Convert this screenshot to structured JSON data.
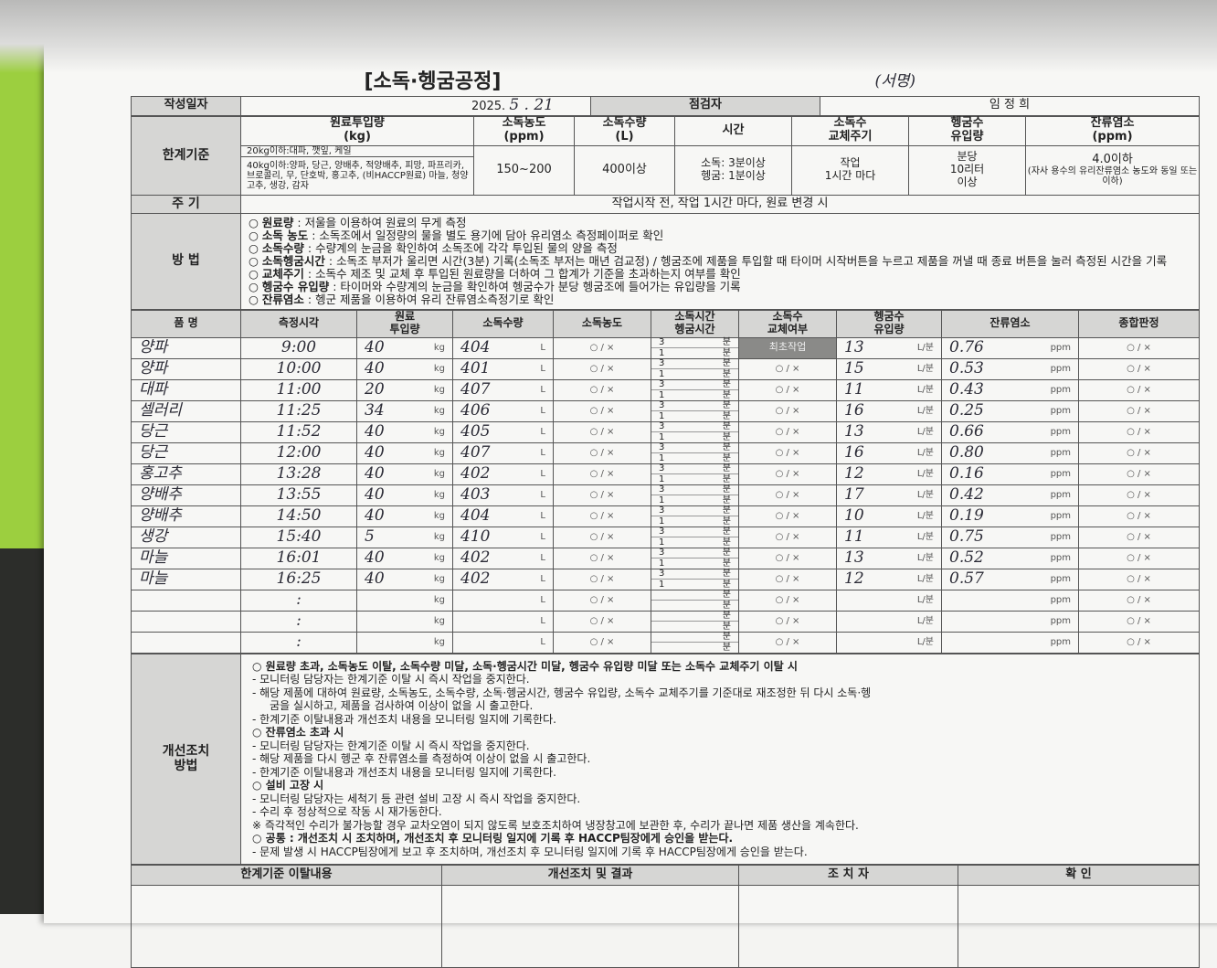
{
  "title": "[소독·헹굼공정]",
  "date_label": "작성일자",
  "date_printed": "2025.",
  "date_handwritten": "5 . 21",
  "inspector_label": "점검자",
  "inspector_name": "임 정 희",
  "limits": {
    "label": "한계기준",
    "headers": [
      "원료투입량\n(kg)",
      "소독농도\n(ppm)",
      "소독수량\n(L)",
      "시간",
      "소독수\n교체주기",
      "헹굼수\n유입량",
      "잔류염소\n(ppm)"
    ],
    "raw_line1": "20kg이하:대파, 깻잎, 케일",
    "raw_line2": "40kg이하:양파, 당근, 양배추, 적양배추, 피망, 파프리카, 브로콜리, 무, 단호박, 홍고추, (비HACCP원료) 마늘, 청양고추, 생강, 감자",
    "conc": "150~200",
    "volume": "400이상",
    "time": "소독: 3분이상\n헹굼: 1분이상",
    "cycle": "작업\n1시간 마다",
    "inflow": "분당\n10리터\n이상",
    "chlorine": "4.0이하",
    "chlorine_note": "(자사 용수의 유리잔류염소 농도와 동일 또는 이하)"
  },
  "period": {
    "label": "주 기",
    "value": "작업시작 전, 작업 1시간 마다, 원료 변경 시"
  },
  "methods": {
    "label": "방 법",
    "items": [
      {
        "k": "원료량",
        "v": " : 저울을 이용하여 원료의 무게 측정"
      },
      {
        "k": "소독 농도",
        "v": " : 소독조에서 일정량의 물을 별도 용기에 담아 유리염소 측정페이퍼로 확인"
      },
      {
        "k": "소독수량",
        "v": " : 수량계의 눈금을 확인하여 소독조에 각각 투입된 물의 양을 측정"
      },
      {
        "k": "소독헹굼시간",
        "v": " : 소독조 부저가 울리면 시간(3분) 기록(소독조 부저는 매년 검교정) / 헹굼조에 제품을 투입할 때 타이머 시작버튼을 누르고 제품을 꺼낼 때 종료 버튼을 눌러 측정된 시간을 기록"
      },
      {
        "k": "교체주기",
        "v": " : 소독수 제조 및 교체 후 투입된 원료량을 더하여 그 합계가 기준을 초과하는지 여부를 확인"
      },
      {
        "k": "헹굼수 유입량",
        "v": " : 타이머와 수량계의 눈금을 확인하여 헹굼수가 분당 헹굼조에 들어가는 유입량을 기록"
      },
      {
        "k": "잔류염소",
        "v": " : 헹군 제품을 이용하여 유리 잔류염소측정기로 확인"
      }
    ]
  },
  "log": {
    "headers": [
      "품 명",
      "측정시각",
      "원료\n투입량",
      "소독수량",
      "소독농도",
      "소독시간\n헹굼시간",
      "소독수\n교체여부",
      "헹굼수\n유입량",
      "잔류염소",
      "종합판정"
    ],
    "units": {
      "kg": "kg",
      "L": "L",
      "min": "분",
      "lpm": "L/분",
      "ppm": "ppm",
      "ox": "○ / ×"
    },
    "rows": [
      {
        "item": "양파",
        "time": "9:00",
        "raw": "40",
        "vol": "404",
        "cycle": "최초작업",
        "dis": "3",
        "rinse": "1",
        "inflow": "13",
        "cl": "0.76"
      },
      {
        "item": "양파",
        "time": "10:00",
        "raw": "40",
        "vol": "401",
        "cycle": "",
        "dis": "3",
        "rinse": "1",
        "inflow": "15",
        "cl": "0.53"
      },
      {
        "item": "대파",
        "time": "11:00",
        "raw": "20",
        "vol": "407",
        "cycle": "",
        "dis": "3",
        "rinse": "1",
        "inflow": "11",
        "cl": "0.43"
      },
      {
        "item": "셀러리",
        "time": "11:25",
        "raw": "34",
        "vol": "406",
        "cycle": "",
        "dis": "3",
        "rinse": "1",
        "inflow": "16",
        "cl": "0.25"
      },
      {
        "item": "당근",
        "time": "11:52",
        "raw": "40",
        "vol": "405",
        "cycle": "",
        "dis": "3",
        "rinse": "1",
        "inflow": "13",
        "cl": "0.66"
      },
      {
        "item": "당근",
        "time": "12:00",
        "raw": "40",
        "vol": "407",
        "cycle": "",
        "dis": "3",
        "rinse": "1",
        "inflow": "16",
        "cl": "0.80"
      },
      {
        "item": "홍고추",
        "time": "13:28",
        "raw": "40",
        "vol": "402",
        "cycle": "",
        "dis": "3",
        "rinse": "1",
        "inflow": "12",
        "cl": "0.16"
      },
      {
        "item": "양배추",
        "time": "13:55",
        "raw": "40",
        "vol": "403",
        "cycle": "",
        "dis": "3",
        "rinse": "1",
        "inflow": "17",
        "cl": "0.42"
      },
      {
        "item": "양배추",
        "time": "14:50",
        "raw": "40",
        "vol": "404",
        "cycle": "",
        "dis": "3",
        "rinse": "1",
        "inflow": "10",
        "cl": "0.19"
      },
      {
        "item": "생강",
        "time": "15:40",
        "raw": "5",
        "vol": "410",
        "cycle": "",
        "dis": "3",
        "rinse": "1",
        "inflow": "11",
        "cl": "0.75"
      },
      {
        "item": "마늘",
        "time": "16:01",
        "raw": "40",
        "vol": "402",
        "cycle": "",
        "dis": "3",
        "rinse": "1",
        "inflow": "13",
        "cl": "0.52"
      },
      {
        "item": "마늘",
        "time": "16:25",
        "raw": "40",
        "vol": "402",
        "cycle": "",
        "dis": "3",
        "rinse": "1",
        "inflow": "12",
        "cl": "0.57"
      },
      {
        "item": "",
        "time": ":",
        "raw": "",
        "vol": "",
        "cycle": "",
        "dis": "",
        "rinse": "",
        "inflow": "",
        "cl": ""
      },
      {
        "item": "",
        "time": ":",
        "raw": "",
        "vol": "",
        "cycle": "",
        "dis": "",
        "rinse": "",
        "inflow": "",
        "cl": ""
      },
      {
        "item": "",
        "time": ":",
        "raw": "",
        "vol": "",
        "cycle": "",
        "dis": "",
        "rinse": "",
        "inflow": "",
        "cl": ""
      }
    ]
  },
  "corrective": {
    "label": "개선조치\n방법",
    "lines": [
      {
        "b": true,
        "t": "○ 원료량 초과, 소독농도 이탈, 소독수량 미달, 소독·헹굼시간 미달, 헹굼수 유입량 미달 또는 소독수 교체주기 이탈 시"
      },
      {
        "t": "- 모니터링 담당자는 한계기준 이탈 시 즉시 작업을 중지한다."
      },
      {
        "t": "- 해당 제품에 대하여 원료량, 소독농도, 소독수량, 소독·헹굼시간, 헹굼수 유입량, 소독수 교체주기를 기준대로 재조정한 뒤 다시 소독·헹"
      },
      {
        "t": "     굼을 실시하고, 제품을 검사하여 이상이 없을 시 출고한다."
      },
      {
        "t": "- 한계기준 이탈내용과 개선조치 내용을 모니터링 일지에 기록한다."
      },
      {
        "b": true,
        "t": "○ 잔류염소 초과 시"
      },
      {
        "t": "- 모니터링 담당자는 한계기준 이탈 시 즉시 작업을 중지한다."
      },
      {
        "t": "- 해당 제품을 다시 헹군 후 잔류염소를 측정하여 이상이 없을 시 출고한다."
      },
      {
        "t": "- 한계기준 이탈내용과 개선조치 내용을 모니터링 일지에 기록한다."
      },
      {
        "b": true,
        "t": "○ 설비 고장 시"
      },
      {
        "t": "- 모니터링 담당자는 세척기 등 관련 설비 고장 시 즉시 작업을 중지한다."
      },
      {
        "t": "- 수리 후 정상적으로 작동 시 재가동한다."
      },
      {
        "t": "※ 즉각적인 수리가 불가능할 경우 교차오염이 되지 않도록 보호조치하여 냉장창고에 보관한 후, 수리가 끝나면 제품 생산을 계속한다."
      },
      {
        "b": true,
        "t": "○ 공통 : 개선조치 시 조치하며, 개선조치 후 모니터링 일지에 기록 후 HACCP팀장에게 승인을 받는다."
      },
      {
        "t": "- 문제 발생 시 HACCP팀장에게 보고 후 조치하며, 개선조치 후 모니터링 일지에 기록 후 HACCP팀장에게 승인을 받는다."
      }
    ]
  },
  "footer": {
    "headers": [
      "한계기준 이탈내용",
      "개선조치 및 결과",
      "조 치 자",
      "확 인"
    ]
  },
  "signature": "(서명)"
}
